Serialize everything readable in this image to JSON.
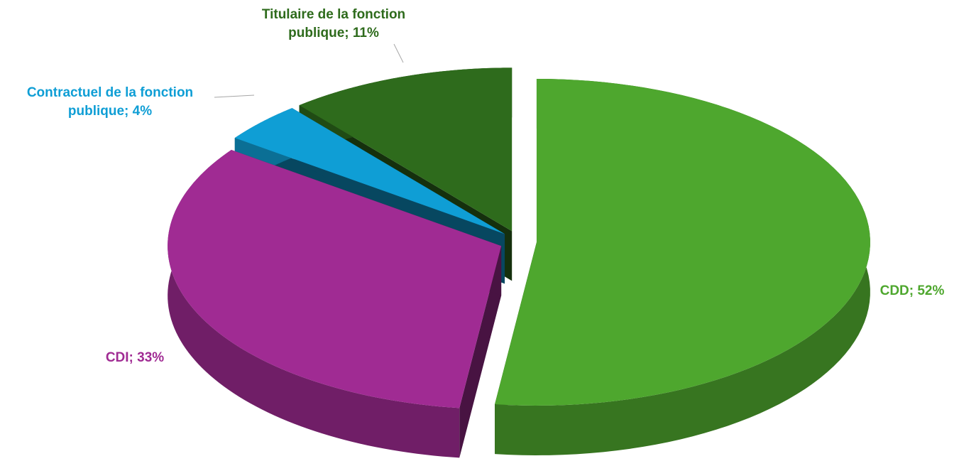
{
  "chart_data": {
    "type": "pie",
    "values": [
      52,
      33,
      4,
      11
    ],
    "value_labels": [
      "CDD; 52%",
      "CDI; 33%",
      "Contractuel de la fonction publique; 4%",
      "Titulaire de la fonction publique; 11%"
    ],
    "colors": [
      "#4ea72e",
      "#a02b93",
      "#0f9ed5",
      "#2e6b1c"
    ],
    "label_colors": [
      "#4ea72e",
      "#a02b93",
      "#0f9ed5",
      "#2e6b1c"
    ],
    "start_angle": 0,
    "direction": "clockwise",
    "three_d": true,
    "exploded": true
  }
}
